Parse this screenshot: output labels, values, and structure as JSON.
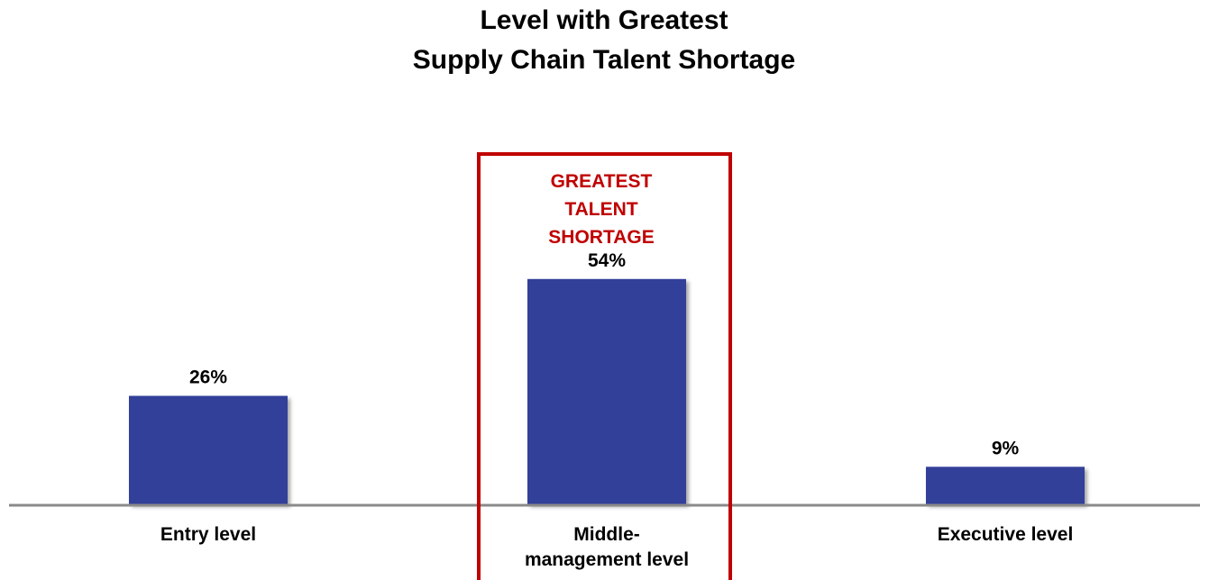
{
  "title_lines": [
    "Level with Greatest",
    "Supply Chain Talent Shortage"
  ],
  "chart_data": {
    "type": "bar",
    "title": "Level with Greatest Supply Chain Talent Shortage",
    "categories": [
      "Entry level",
      "Middle-management level",
      "Executive level"
    ],
    "category_lines": [
      [
        "Entry level"
      ],
      [
        "Middle-",
        "management level"
      ],
      [
        "Executive level"
      ]
    ],
    "values": [
      26,
      54,
      9
    ],
    "data_labels": [
      "26%",
      "54%",
      "9%"
    ],
    "ylim": [
      0,
      60
    ],
    "grid": false,
    "legend": "none",
    "bar_color": "#333f99",
    "highlight": {
      "category_index": 1,
      "color": "#c00000",
      "label_lines": [
        "GREATEST",
        "TALENT",
        "SHORTAGE"
      ]
    }
  }
}
